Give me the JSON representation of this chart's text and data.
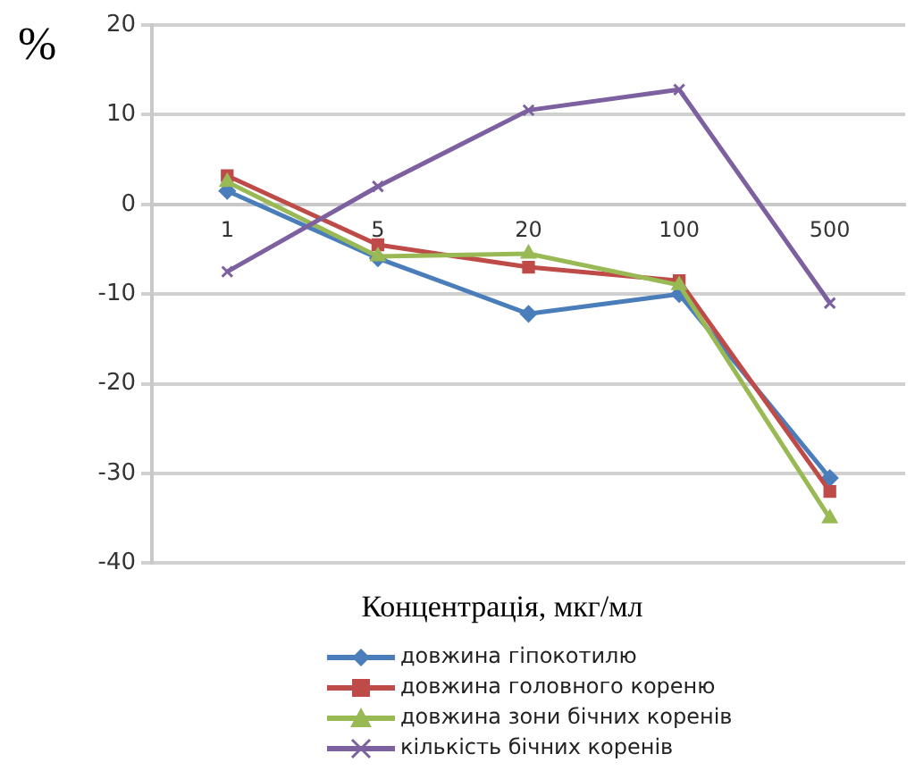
{
  "chart_data": {
    "type": "line",
    "ylabel": "%",
    "xlabel": "Концентрація, мкг/мл",
    "categories": [
      "1",
      "5",
      "20",
      "100",
      "500"
    ],
    "series": [
      {
        "name": "довжина гіпокотилю",
        "color": "#4a7ebb",
        "marker": "diamond",
        "values": [
          1.5,
          -6,
          -12.2,
          -10,
          -30.5
        ]
      },
      {
        "name": "довжина головного кореню",
        "color": "#be4b48",
        "marker": "square",
        "values": [
          3.2,
          -4.5,
          -7,
          -8.5,
          -32
        ]
      },
      {
        "name": "довжина зони бічних коренів",
        "color": "#98b954",
        "marker": "triangle",
        "values": [
          2.5,
          -5.8,
          -5.5,
          -9,
          -35
        ]
      },
      {
        "name": "кількість бічних коренів",
        "color": "#7d60a0",
        "marker": "cross",
        "values": [
          -7.5,
          2,
          10.5,
          12.8,
          -11
        ]
      }
    ],
    "ylim": [
      -40,
      20
    ],
    "yticks": [
      -40,
      -30,
      -20,
      -10,
      0,
      10,
      20
    ],
    "grid": "y",
    "legend": "bottom",
    "line_style": "solid"
  }
}
